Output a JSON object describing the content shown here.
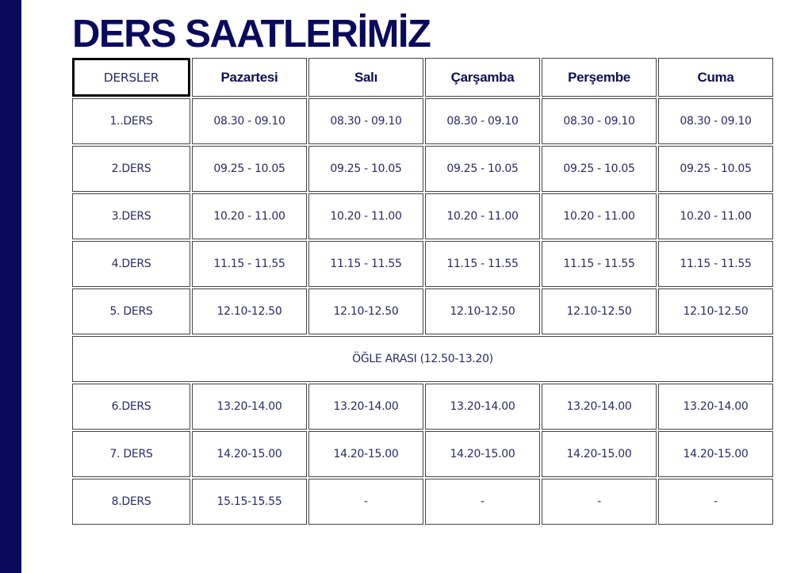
{
  "title": "DERS SAATLERİMİZ",
  "colors": {
    "accent_bar": "#0a0a5c",
    "text": "#2a2a66"
  },
  "header": {
    "first": "DERSLER",
    "days": [
      "Pazartesi",
      "Salı",
      "Çarşamba",
      "Perşembe",
      "Cuma"
    ]
  },
  "rows": [
    {
      "label": "1..DERS",
      "times": [
        "08.30 - 09.10",
        "08.30 - 09.10",
        "08.30 - 09.10",
        "08.30 - 09.10",
        "08.30 - 09.10"
      ]
    },
    {
      "label": "2.DERS",
      "times": [
        "09.25 - 10.05",
        "09.25 - 10.05",
        "09.25 - 10.05",
        "09.25 - 10.05",
        "09.25 - 10.05"
      ]
    },
    {
      "label": "3.DERS",
      "times": [
        "10.20 - 11.00",
        "10.20 - 11.00",
        "10.20 - 11.00",
        "10.20 - 11.00",
        "10.20 - 11.00"
      ]
    },
    {
      "label": "4.DERS",
      "times": [
        "11.15 - 11.55",
        "11.15 - 11.55",
        "11.15 - 11.55",
        "11.15 - 11.55",
        "11.15 - 11.55"
      ]
    },
    {
      "label": "5. DERS",
      "times": [
        "12.10-12.50",
        "12.10-12.50",
        "12.10-12.50",
        "12.10-12.50",
        "12.10-12.50"
      ]
    },
    {
      "break": "ÖĞLE ARASI (12.50-13.20)"
    },
    {
      "label": "6.DERS",
      "times": [
        "13.20-14.00",
        "13.20-14.00",
        "13.20-14.00",
        "13.20-14.00",
        "13.20-14.00"
      ]
    },
    {
      "label": "7. DERS",
      "times": [
        "14.20-15.00",
        "14.20-15.00",
        "14.20-15.00",
        "14.20-15.00",
        "14.20-15.00"
      ]
    },
    {
      "label": "8.DERS",
      "times": [
        "15.15-15.55",
        "-",
        "-",
        "-",
        "-"
      ]
    }
  ]
}
